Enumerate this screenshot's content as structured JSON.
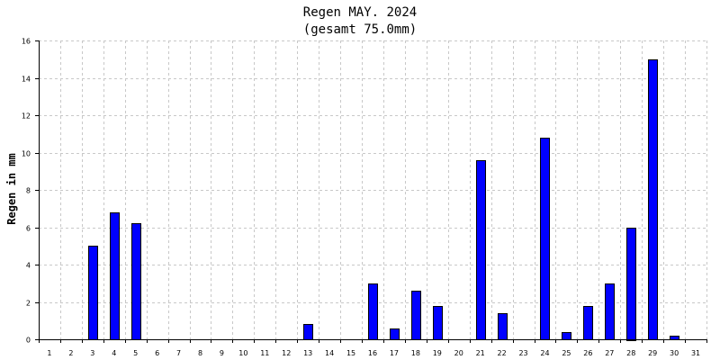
{
  "chart_data": {
    "type": "bar",
    "title": "Regen MAY. 2024",
    "subtitle": "(gesamt 75.0mm)",
    "xlabel": "",
    "ylabel": "Regen in mm",
    "categories": [
      "1",
      "2",
      "3",
      "4",
      "5",
      "6",
      "7",
      "8",
      "9",
      "10",
      "11",
      "12",
      "13",
      "14",
      "15",
      "16",
      "17",
      "18",
      "19",
      "20",
      "21",
      "22",
      "23",
      "24",
      "25",
      "26",
      "27",
      "28",
      "29",
      "30",
      "31"
    ],
    "values": [
      0,
      0,
      5.0,
      6.8,
      6.2,
      0,
      0,
      0,
      0,
      0,
      0,
      0,
      0.8,
      0,
      0,
      3.0,
      0.6,
      2.6,
      1.8,
      0,
      9.6,
      1.4,
      0,
      10.8,
      0.4,
      1.8,
      3.0,
      6.0,
      15.0,
      0.2,
      0
    ],
    "ylim": [
      0,
      16
    ],
    "yticks": [
      0,
      2,
      4,
      6,
      8,
      10,
      12,
      14,
      16
    ],
    "grid": true,
    "bar_color": "#0000ff"
  }
}
